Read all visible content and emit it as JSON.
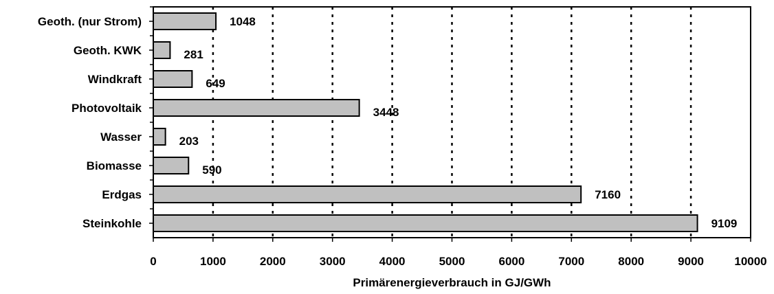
{
  "chart_data": {
    "type": "bar",
    "orientation": "horizontal",
    "categories": [
      "Geoth. (nur Strom)",
      "Geoth. KWK",
      "Windkraft",
      "Photovoltaik",
      "Wasser",
      "Biomasse",
      "Erdgas",
      "Steinkohle"
    ],
    "values": [
      1048,
      281,
      649,
      3448,
      203,
      590,
      7160,
      9109
    ],
    "value_labels": [
      "1048",
      "281",
      "649",
      "3448",
      "203",
      "590",
      "7160",
      "9109"
    ],
    "xlabel": "Primärenergieverbrauch in GJ/GWh",
    "xlim": [
      0,
      10000
    ],
    "x_ticks": [
      "0",
      "1000",
      "2000",
      "3000",
      "4000",
      "5000",
      "6000",
      "7000",
      "8000",
      "9000",
      "10000"
    ],
    "x_tick_values": [
      0,
      1000,
      2000,
      3000,
      4000,
      5000,
      6000,
      7000,
      8000,
      9000,
      10000
    ],
    "grid": "vertical dotted",
    "legend": "none",
    "colors": {
      "bar_fill": "#c0c0c0",
      "bar_stroke": "#000000",
      "grid": "#000000"
    }
  }
}
